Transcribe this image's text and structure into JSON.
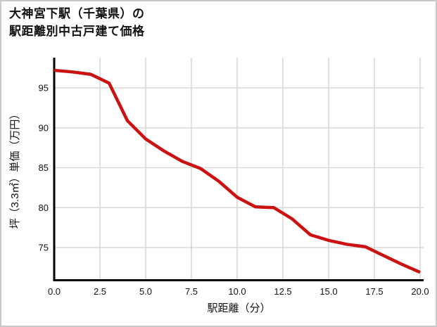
{
  "title": {
    "line1": "大神宮下駅（千葉県）の",
    "line2": "駅距離別中古戸建て価格"
  },
  "chart_data": {
    "type": "line",
    "title": "大神宮下駅（千葉県）の駅距離別中古戸建て価格",
    "xlabel": "駅距離（分）",
    "ylabel": "坪（3.3㎡）単価（万円）",
    "x": [
      0,
      1,
      2,
      3,
      4,
      5,
      6,
      7,
      8,
      9,
      10,
      11,
      12,
      13,
      14,
      15,
      16,
      17,
      18,
      19,
      20
    ],
    "values": [
      97.2,
      97.0,
      96.7,
      95.6,
      90.9,
      88.6,
      87.1,
      85.8,
      84.9,
      83.3,
      81.3,
      80.1,
      80.0,
      78.6,
      76.6,
      75.9,
      75.4,
      75.1,
      74.0,
      72.9,
      71.9
    ],
    "x_tick_labels": [
      "0.0",
      "2.5",
      "5.0",
      "7.5",
      "10.0",
      "12.5",
      "15.0",
      "17.5",
      "20.0"
    ],
    "x_tick_values": [
      0,
      2.5,
      5,
      7.5,
      10,
      12.5,
      15,
      17.5,
      20
    ],
    "y_tick_labels": [
      "95",
      "90",
      "85",
      "80",
      "75"
    ],
    "y_tick_values": [
      95,
      90,
      85,
      80,
      75
    ],
    "xlim": [
      0,
      20
    ],
    "ylim": [
      70.9,
      98.8
    ],
    "grid": true,
    "legend": "none",
    "line_color": "#cc1111",
    "grid_color": "#d9d9d9",
    "axis_color": "#000000",
    "tick_label_color": "#1a1a1a"
  }
}
